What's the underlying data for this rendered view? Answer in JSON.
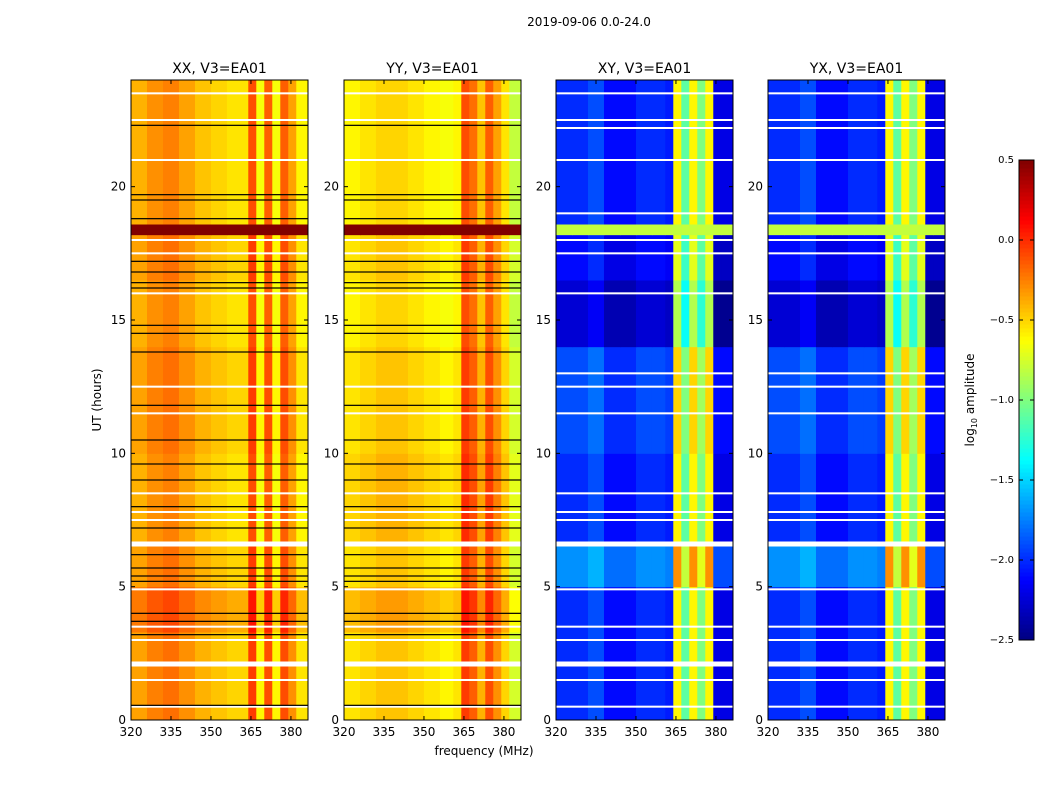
{
  "chart_data": {
    "type": "heatmap",
    "title": "2019-09-06 0.0-24.0",
    "xlabel": "frequency (MHz)",
    "ylabel": "UT (hours)",
    "xlim": [
      320,
      386.4
    ],
    "ylim": [
      0,
      24
    ],
    "xticks": [
      320,
      335,
      350,
      365,
      380
    ],
    "yticks": [
      0,
      5,
      10,
      15,
      20
    ],
    "colormap": "jet",
    "colorbar": {
      "label": "log10 amplitude",
      "label_main": "log",
      "label_sub": "10",
      "label_rest": " amplitude",
      "range": [
        -2.5,
        0.5
      ],
      "ticks": [
        "0.5",
        "0.0",
        "−0.5",
        "−1.0",
        "−1.5",
        "−2.0",
        "−2.5"
      ],
      "tick_values": [
        0.5,
        0.0,
        -0.5,
        -1.0,
        -1.5,
        -2.0,
        -2.5
      ]
    },
    "freq_bin_edges": [
      320,
      326,
      332,
      338,
      344,
      350,
      356,
      361,
      364,
      367,
      370,
      373,
      376,
      379,
      382,
      386.4
    ],
    "time_band_edges": [
      0,
      3.3,
      5,
      6.6,
      10,
      14,
      16.5,
      18.2,
      18.6,
      24
    ],
    "panels": [
      {
        "title": "XX, V3=EA01",
        "freq_profile": [
          -0.35,
          -0.25,
          -0.2,
          -0.3,
          -0.4,
          -0.45,
          -0.5,
          -0.5,
          -0.05,
          -0.6,
          -0.1,
          -0.6,
          -0.1,
          -0.3,
          -0.55
        ],
        "band_offsets": [
          0,
          0.12,
          0,
          -0.05,
          0,
          -0.05,
          0,
          null,
          -0.05
        ],
        "flag_band_value": 0.5,
        "white_rows": [
          0.5,
          1.5,
          2.1,
          3.0,
          3.5,
          4.9,
          6.6,
          7.5,
          7.8,
          8.5,
          11.5,
          12.5,
          16.0,
          17.5,
          18.0,
          21.0,
          22.5,
          23.5
        ],
        "black_rows": [
          0.55,
          3.2,
          3.7,
          4.0,
          5.2,
          5.4,
          5.7,
          6.2,
          7.2,
          8.0,
          9.0,
          9.6,
          10.5,
          11.8,
          13.8,
          14.5,
          14.8,
          16.2,
          16.4,
          16.8,
          17.2,
          18.8,
          19.5,
          19.7,
          22.3
        ]
      },
      {
        "title": "YY, V3=EA01",
        "freq_profile": [
          -0.55,
          -0.5,
          -0.45,
          -0.45,
          -0.5,
          -0.55,
          -0.6,
          -0.55,
          -0.05,
          -0.15,
          -0.4,
          -0.1,
          -0.3,
          -0.5,
          -0.75
        ],
        "band_offsets": [
          0,
          0.12,
          0,
          0.05,
          0,
          -0.05,
          0,
          null,
          -0.05
        ],
        "flag_band_value": 0.5,
        "white_rows": [
          0.5,
          1.5,
          2.1,
          3.0,
          3.5,
          4.9,
          6.6,
          7.5,
          7.8,
          8.5,
          11.5,
          12.5,
          16.0,
          17.5,
          18.0,
          21.0,
          22.5,
          23.5
        ],
        "black_rows": [
          0.55,
          3.2,
          3.7,
          4.0,
          5.2,
          5.4,
          5.7,
          6.2,
          7.2,
          8.0,
          9.0,
          9.6,
          10.5,
          11.8,
          13.8,
          14.5,
          14.8,
          16.2,
          16.4,
          16.8,
          17.2,
          18.8,
          19.5,
          19.7,
          22.3
        ]
      },
      {
        "title": "XY, V3=EA01",
        "freq_profile": [
          -2.0,
          -2.0,
          -1.9,
          -2.1,
          -2.1,
          -2.0,
          -2.0,
          -2.05,
          -0.6,
          -1.1,
          -0.6,
          -1.0,
          -0.6,
          -2.2,
          -2.2
        ],
        "band_offsets": [
          0,
          0,
          0.3,
          0,
          0.1,
          -0.25,
          -0.1,
          null,
          0
        ],
        "flag_band_value": -0.8,
        "white_rows": [
          0.5,
          1.5,
          2.1,
          3.0,
          3.5,
          4.9,
          6.6,
          7.5,
          7.8,
          8.5,
          11.5,
          12.5,
          13.0,
          16.0,
          17.5,
          18.0,
          19.0,
          21.0,
          22.2,
          22.5,
          23.5
        ],
        "black_rows": []
      },
      {
        "title": "YX, V3=EA01",
        "freq_profile": [
          -2.0,
          -2.0,
          -1.9,
          -2.1,
          -2.1,
          -2.0,
          -2.0,
          -2.05,
          -0.6,
          -1.1,
          -0.6,
          -1.0,
          -0.6,
          -2.2,
          -2.2
        ],
        "band_offsets": [
          0,
          0,
          0.3,
          0,
          0.1,
          -0.25,
          -0.1,
          null,
          0
        ],
        "flag_band_value": -0.8,
        "white_rows": [
          0.5,
          1.5,
          2.1,
          3.0,
          3.5,
          4.9,
          6.6,
          7.5,
          7.8,
          8.5,
          11.5,
          12.5,
          13.0,
          16.0,
          17.5,
          18.0,
          19.0,
          21.0,
          22.2,
          22.5,
          23.5
        ],
        "black_rows": []
      }
    ]
  }
}
